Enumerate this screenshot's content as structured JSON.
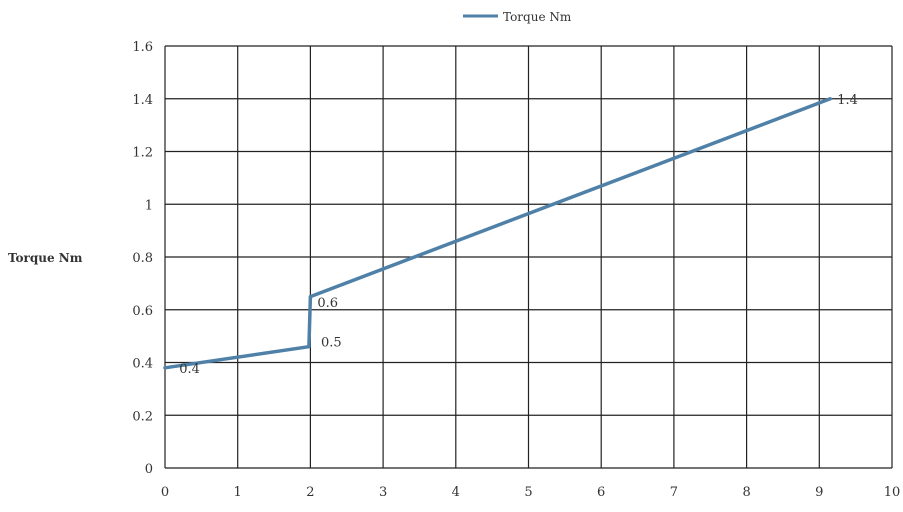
{
  "chart_data": {
    "type": "line",
    "title": "",
    "xlabel": "",
    "ylabel": "Torque Nm",
    "xlim": [
      0,
      10
    ],
    "ylim": [
      0,
      1.6
    ],
    "x_ticks": [
      0,
      1,
      2,
      3,
      4,
      5,
      6,
      7,
      8,
      9,
      10
    ],
    "y_ticks": [
      0,
      0.2,
      0.4,
      0.6,
      0.8,
      1,
      1.2,
      1.4,
      1.6
    ],
    "x_tick_labels": [
      "0",
      "1",
      "2",
      "3",
      "4",
      "5",
      "6",
      "7",
      "8",
      "9",
      "10"
    ],
    "y_tick_labels": [
      "0",
      "0.2",
      "0.4",
      "0.6",
      "0.8",
      "1",
      "1.2",
      "1.4",
      "1.6"
    ],
    "grid": true,
    "legend_position": "top",
    "series": [
      {
        "name": "Torque Nm",
        "color": "#4f81a8",
        "points": [
          {
            "x": 0,
            "y": 0.38
          },
          {
            "x": 1.98,
            "y": 0.46
          },
          {
            "x": 2.0,
            "y": 0.65
          },
          {
            "x": 9.15,
            "y": 1.4
          }
        ]
      }
    ],
    "data_labels": [
      {
        "text": "0.4",
        "x": 0.1,
        "y": 0.38
      },
      {
        "text": "0.5",
        "x": 2.05,
        "y": 0.48
      },
      {
        "text": "0.6",
        "x": 2.0,
        "y": 0.63
      },
      {
        "text": "1.4",
        "x": 9.15,
        "y": 1.4
      }
    ]
  }
}
